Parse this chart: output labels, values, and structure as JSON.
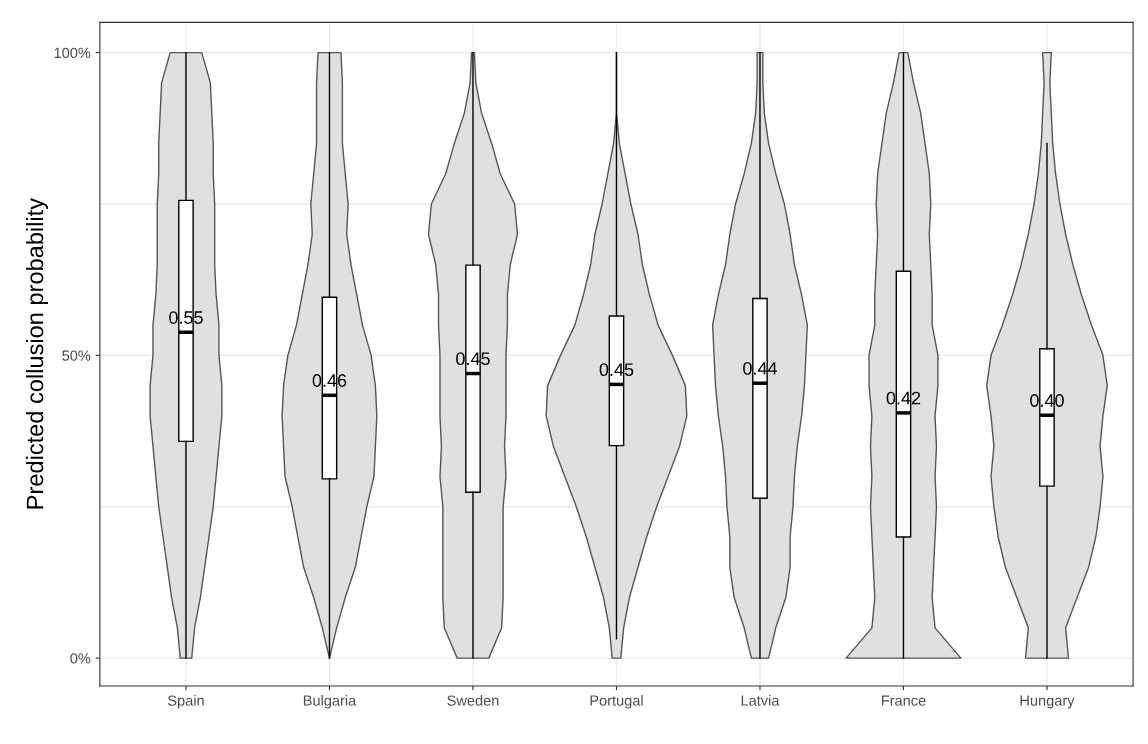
{
  "chart_data": {
    "type": "box",
    "ylabel": "Predicted collusion probability",
    "categories": [
      "Spain",
      "Bulgaria",
      "Sweden",
      "Portugal",
      "Latvia",
      "France",
      "Hungary"
    ],
    "color": "#ffffff",
    "boxes": [
      {
        "low": 0,
        "q1": 35.8,
        "median": 53.8,
        "q3": 75.6,
        "high": 100
      },
      {
        "low": 0,
        "q1": 29.6,
        "median": 43.4,
        "q3": 59.6,
        "high": 100
      },
      {
        "low": 0,
        "q1": 27.4,
        "median": 47,
        "q3": 64.9,
        "high": 100
      },
      {
        "low": 3.2,
        "q1": 35.1,
        "median": 45.2,
        "q3": 56.5,
        "high": 100
      },
      {
        "low": 0,
        "q1": 26.4,
        "median": 45.4,
        "q3": 59.4,
        "high": 100
      },
      {
        "low": 0,
        "q1": 20,
        "median": 40.5,
        "q3": 63.9,
        "high": 100
      },
      {
        "low": 0,
        "q1": 28.4,
        "median": 40.1,
        "q3": 51.1,
        "high": 85
      }
    ],
    "annotations": [
      "0.55",
      "0.46",
      "0.45",
      "0.45",
      "0.44",
      "0.42",
      "0.40"
    ],
    "ylim": [
      -4.6,
      105
    ],
    "yticks": [
      {
        "value": 0,
        "label": "0%"
      },
      {
        "value": 25,
        "label": null
      },
      {
        "value": 50,
        "label": "50%"
      },
      {
        "value": 75,
        "label": null
      },
      {
        "value": 100,
        "label": "100%"
      }
    ],
    "grid": true
  }
}
